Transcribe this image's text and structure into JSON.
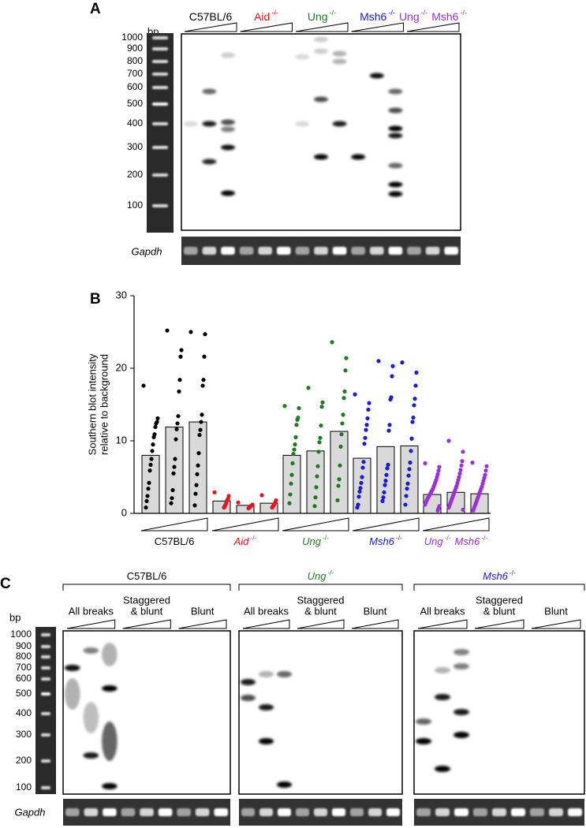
{
  "panel_a": {
    "label": "A",
    "unit": "bp",
    "ladder_labels": [
      1000,
      900,
      800,
      700,
      600,
      500,
      400,
      300,
      200,
      100
    ],
    "groups": [
      {
        "parts": [
          {
            "text": "C57BL/6"
          }
        ],
        "color": "#000000"
      },
      {
        "parts": [
          {
            "text": "Aid",
            "sup": "-/-"
          }
        ],
        "color": "#e8141b"
      },
      {
        "parts": [
          {
            "text": "Ung",
            "sup": "-/-"
          }
        ],
        "color": "#1f7a1f"
      },
      {
        "parts": [
          {
            "text": "Msh6",
            "sup": "-/-"
          }
        ],
        "color": "#1a1adc"
      },
      {
        "parts": [
          {
            "text": "Ung",
            "sup": "-/-"
          },
          {
            "text": "Msh6",
            "sup": "-/-"
          }
        ],
        "color": "#9b30d9"
      }
    ],
    "loading_control": "Gapdh"
  },
  "chart_data": {
    "type": "bar",
    "label": "B",
    "y_label": [
      "Southern blot intensity",
      "relative to background"
    ],
    "ylim": [
      0,
      30
    ],
    "yticks": [
      0,
      10,
      20,
      30
    ],
    "bar_color": "#d9d9d9",
    "groups": [
      {
        "parts": [
          {
            "text": "C57BL/6"
          }
        ],
        "color": "#000000",
        "bars": [
          8.0,
          11.9,
          12.6
        ],
        "points": [
          [
            17.6,
            13.1,
            12.6,
            12.4,
            11.9,
            10.9,
            10.5,
            9.5,
            8.6,
            7.5,
            6.7,
            5.9,
            4.2,
            3.4,
            2.4,
            1.7,
            0.8
          ],
          [
            25.2,
            22.5,
            21.6,
            18.4,
            16.8,
            13.4,
            12.4,
            11.6,
            10.2,
            7.5,
            6.4,
            5.5,
            3.2,
            2.1,
            1.4
          ],
          [
            25.0,
            24.7,
            21.6,
            18.4,
            17.6,
            13.6,
            12.6,
            11.5,
            10.8,
            8.3,
            6.6,
            5.4,
            3.9,
            2.7,
            1.1
          ]
        ]
      },
      {
        "parts": [
          {
            "text": "Aid",
            "sup": "-/-"
          }
        ],
        "color": "#e8141b",
        "bars": [
          1.7,
          1.1,
          1.4
        ],
        "points": [
          [
            2.9,
            2.4,
            2.0,
            1.8,
            1.5,
            1.2,
            1.0,
            0.8
          ],
          [
            1.5,
            1.2,
            1.1,
            1.0,
            0.9,
            0.8,
            0.7
          ],
          [
            2.5,
            1.8,
            1.5,
            1.3,
            1.1,
            1.0,
            0.8
          ]
        ]
      },
      {
        "parts": [
          {
            "text": "Ung",
            "sup": "-/-"
          }
        ],
        "color": "#1f7a1f",
        "bars": [
          8.0,
          8.6,
          11.3
        ],
        "points": [
          [
            14.8,
            14.5,
            13.2,
            12.9,
            12.2,
            10.5,
            9.5,
            8.8,
            8.2,
            6.9,
            5.3,
            4.1,
            2.6,
            1.4
          ],
          [
            17.3,
            15.3,
            14.7,
            12.1,
            10.4,
            9.8,
            8.5,
            6.5,
            5.1,
            3.6,
            2.2,
            1.0
          ],
          [
            23.6,
            21.4,
            19.7,
            16.8,
            15.9,
            13.6,
            12.4,
            10.9,
            9.2,
            6.6,
            4.7,
            3.8,
            1.8
          ]
        ]
      },
      {
        "parts": [
          {
            "text": "Msh6",
            "sup": "-/-"
          }
        ],
        "color": "#1a1adc",
        "bars": [
          7.6,
          9.2,
          9.3
        ],
        "points": [
          [
            16.4,
            15.2,
            14.3,
            13.1,
            12.2,
            11.5,
            10.4,
            9.6,
            7.1,
            6.3,
            5.0,
            4.2,
            3.5,
            3.0,
            2.3,
            1.2,
            0.8
          ],
          [
            21.0,
            20.3,
            18.9,
            16.0,
            15.7,
            12.2,
            11.4,
            6.7,
            6.2,
            5.3,
            4.5,
            3.9,
            2.9,
            2.2,
            1.7
          ],
          [
            20.8,
            19.4,
            17.6,
            15.8,
            14.9,
            13.2,
            12.6,
            10.3,
            8.6,
            7.0,
            6.1,
            5.2,
            4.1,
            3.4,
            2.4,
            1.2
          ]
        ]
      },
      {
        "parts": [
          {
            "text": "Ung",
            "sup": "-/-"
          },
          {
            "text": "Msh6",
            "sup": "-/-"
          }
        ],
        "color": "#9b30d9",
        "bars": [
          2.6,
          2.9,
          2.7
        ],
        "points": [
          [
            6.9,
            6.4,
            5.9,
            5.4,
            5.0,
            4.6,
            4.3,
            4.0,
            3.7,
            3.4,
            3.2,
            3.0,
            2.8,
            2.6,
            2.4,
            2.2,
            2.0,
            1.8,
            1.5,
            1.2,
            1.0,
            0.7,
            0.4
          ],
          [
            10.0,
            8.5,
            7.2,
            6.6,
            6.0,
            5.5,
            5.0,
            4.6,
            4.2,
            3.8,
            3.5,
            3.2,
            2.9,
            2.6,
            2.3,
            2.0,
            1.7,
            1.4,
            1.1,
            0.8,
            0.5
          ],
          [
            7.0,
            6.5,
            5.9,
            5.3,
            4.9,
            4.5,
            4.1,
            3.7,
            3.4,
            3.1,
            2.8,
            2.5,
            2.2,
            1.9,
            1.6,
            1.3,
            1.0,
            0.7,
            0.4
          ]
        ]
      }
    ]
  },
  "panel_c": {
    "label": "C",
    "unit": "bp",
    "ladder_labels": [
      1000,
      900,
      800,
      700,
      600,
      500,
      400,
      300,
      200,
      100
    ],
    "groups": [
      {
        "parts": [
          {
            "text": "C57BL/6"
          }
        ],
        "color": "#000000"
      },
      {
        "parts": [
          {
            "text": "Ung",
            "sup": "-/-"
          }
        ],
        "color": "#1f7a1f"
      },
      {
        "parts": [
          {
            "text": "Msh6",
            "sup": "-/-"
          }
        ],
        "color": "#1a1adc"
      }
    ],
    "conditions": [
      [
        "All breaks"
      ],
      [
        "Staggered",
        "& blunt"
      ],
      [
        "Blunt"
      ]
    ],
    "loading_control": "Gapdh"
  }
}
